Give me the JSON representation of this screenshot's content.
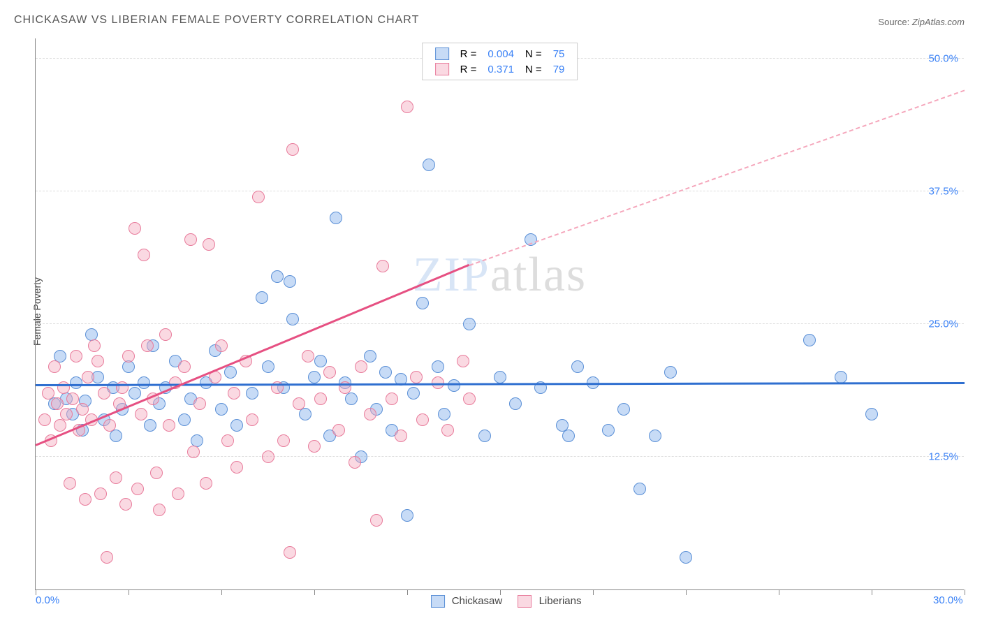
{
  "title": "CHICKASAW VS LIBERIAN FEMALE POVERTY CORRELATION CHART",
  "source_label": "Source:",
  "source_value": "ZipAtlas.com",
  "ylabel": "Female Poverty",
  "watermark_a": "ZIP",
  "watermark_b": "atlas",
  "chart": {
    "type": "scatter",
    "xlim": [
      0,
      30
    ],
    "ylim": [
      0,
      52
    ],
    "xticks": [
      0,
      3,
      6,
      9,
      12,
      15,
      18,
      21,
      24,
      27,
      30
    ],
    "xtick_labels": {
      "0": "0.0%",
      "30": "30.0%"
    },
    "yticks": [
      12.5,
      25.0,
      37.5,
      50.0
    ],
    "ytick_labels": [
      "12.5%",
      "25.0%",
      "37.5%",
      "50.0%"
    ],
    "background_color": "#ffffff",
    "grid_color": "#dddddd",
    "axis_color": "#888888",
    "tick_label_color": "#3b82f6",
    "marker_radius": 9,
    "series": [
      {
        "name": "Chickasaw",
        "fill": "rgba(130,175,235,0.45)",
        "stroke": "#5a8fd6",
        "R": "0.004",
        "N": "75",
        "trend": {
          "x1": 0,
          "y1": 19.2,
          "x2": 30,
          "y2": 19.4,
          "color": "#2f6fd0",
          "width": 2.5
        },
        "points": [
          [
            0.6,
            17.5
          ],
          [
            0.8,
            22.0
          ],
          [
            1.0,
            18.0
          ],
          [
            1.2,
            16.5
          ],
          [
            1.3,
            19.5
          ],
          [
            1.5,
            15.0
          ],
          [
            1.6,
            17.8
          ],
          [
            1.8,
            24.0
          ],
          [
            2.0,
            20.0
          ],
          [
            2.2,
            16.0
          ],
          [
            2.5,
            19.0
          ],
          [
            2.6,
            14.5
          ],
          [
            2.8,
            17.0
          ],
          [
            3.0,
            21.0
          ],
          [
            3.2,
            18.5
          ],
          [
            3.5,
            19.5
          ],
          [
            3.7,
            15.5
          ],
          [
            3.8,
            23.0
          ],
          [
            4.0,
            17.5
          ],
          [
            4.2,
            19.0
          ],
          [
            4.5,
            21.5
          ],
          [
            4.8,
            16.0
          ],
          [
            5.0,
            18.0
          ],
          [
            5.2,
            14.0
          ],
          [
            5.5,
            19.5
          ],
          [
            5.8,
            22.5
          ],
          [
            6.0,
            17.0
          ],
          [
            6.3,
            20.5
          ],
          [
            6.5,
            15.5
          ],
          [
            7.0,
            18.5
          ],
          [
            7.3,
            27.5
          ],
          [
            7.5,
            21.0
          ],
          [
            7.8,
            29.5
          ],
          [
            8.0,
            19.0
          ],
          [
            8.2,
            29.0
          ],
          [
            8.3,
            25.5
          ],
          [
            8.7,
            16.5
          ],
          [
            9.0,
            20.0
          ],
          [
            9.2,
            21.5
          ],
          [
            9.5,
            14.5
          ],
          [
            9.7,
            35.0
          ],
          [
            10.0,
            19.5
          ],
          [
            10.2,
            18.0
          ],
          [
            10.5,
            12.5
          ],
          [
            10.8,
            22.0
          ],
          [
            11.0,
            17.0
          ],
          [
            11.3,
            20.5
          ],
          [
            11.5,
            15.0
          ],
          [
            11.8,
            19.8
          ],
          [
            12.0,
            7.0
          ],
          [
            12.2,
            18.5
          ],
          [
            12.5,
            27.0
          ],
          [
            12.7,
            40.0
          ],
          [
            13.0,
            21.0
          ],
          [
            13.2,
            16.5
          ],
          [
            13.5,
            19.2
          ],
          [
            14.0,
            25.0
          ],
          [
            14.5,
            14.5
          ],
          [
            15.0,
            20.0
          ],
          [
            15.5,
            17.5
          ],
          [
            16.0,
            33.0
          ],
          [
            16.3,
            19.0
          ],
          [
            17.0,
            15.5
          ],
          [
            17.2,
            14.5
          ],
          [
            17.5,
            21.0
          ],
          [
            18.0,
            19.5
          ],
          [
            18.5,
            15.0
          ],
          [
            19.0,
            17.0
          ],
          [
            19.5,
            9.5
          ],
          [
            20.0,
            14.5
          ],
          [
            20.5,
            20.5
          ],
          [
            21.0,
            3.0
          ],
          [
            25.0,
            23.5
          ],
          [
            26.0,
            20.0
          ],
          [
            27.0,
            16.5
          ]
        ]
      },
      {
        "name": "Liberians",
        "fill": "rgba(245,170,190,0.45)",
        "stroke": "#e87b9b",
        "R": "0.371",
        "N": "79",
        "trend": {
          "x1": 0,
          "y1": 13.5,
          "x2": 14,
          "y2": 30.5,
          "color": "#e65082",
          "width": 2.5
        },
        "trend_dash": {
          "x1": 14,
          "y1": 30.5,
          "x2": 30,
          "y2": 47.0,
          "color": "#f5a6bb"
        },
        "points": [
          [
            0.3,
            16.0
          ],
          [
            0.4,
            18.5
          ],
          [
            0.5,
            14.0
          ],
          [
            0.6,
            21.0
          ],
          [
            0.7,
            17.5
          ],
          [
            0.8,
            15.5
          ],
          [
            0.9,
            19.0
          ],
          [
            1.0,
            16.5
          ],
          [
            1.1,
            10.0
          ],
          [
            1.2,
            18.0
          ],
          [
            1.3,
            22.0
          ],
          [
            1.4,
            15.0
          ],
          [
            1.5,
            17.0
          ],
          [
            1.6,
            8.5
          ],
          [
            1.7,
            20.0
          ],
          [
            1.8,
            16.0
          ],
          [
            1.9,
            23.0
          ],
          [
            2.0,
            21.5
          ],
          [
            2.1,
            9.0
          ],
          [
            2.2,
            18.5
          ],
          [
            2.3,
            3.0
          ],
          [
            2.4,
            15.5
          ],
          [
            2.6,
            10.5
          ],
          [
            2.7,
            17.5
          ],
          [
            2.8,
            19.0
          ],
          [
            2.9,
            8.0
          ],
          [
            3.0,
            22.0
          ],
          [
            3.2,
            34.0
          ],
          [
            3.3,
            9.5
          ],
          [
            3.4,
            16.5
          ],
          [
            3.5,
            31.5
          ],
          [
            3.6,
            23.0
          ],
          [
            3.8,
            18.0
          ],
          [
            3.9,
            11.0
          ],
          [
            4.0,
            7.5
          ],
          [
            4.2,
            24.0
          ],
          [
            4.3,
            15.5
          ],
          [
            4.5,
            19.5
          ],
          [
            4.6,
            9.0
          ],
          [
            4.8,
            21.0
          ],
          [
            5.0,
            33.0
          ],
          [
            5.1,
            13.0
          ],
          [
            5.3,
            17.5
          ],
          [
            5.5,
            10.0
          ],
          [
            5.6,
            32.5
          ],
          [
            5.8,
            20.0
          ],
          [
            6.0,
            23.0
          ],
          [
            6.2,
            14.0
          ],
          [
            6.4,
            18.5
          ],
          [
            6.5,
            11.5
          ],
          [
            6.8,
            21.5
          ],
          [
            7.0,
            16.0
          ],
          [
            7.2,
            37.0
          ],
          [
            7.5,
            12.5
          ],
          [
            7.8,
            19.0
          ],
          [
            8.0,
            14.0
          ],
          [
            8.2,
            3.5
          ],
          [
            8.3,
            41.5
          ],
          [
            8.5,
            17.5
          ],
          [
            8.8,
            22.0
          ],
          [
            9.0,
            13.5
          ],
          [
            9.2,
            18.0
          ],
          [
            9.5,
            20.5
          ],
          [
            9.8,
            15.0
          ],
          [
            10.0,
            19.0
          ],
          [
            10.3,
            12.0
          ],
          [
            10.5,
            21.0
          ],
          [
            10.8,
            16.5
          ],
          [
            11.0,
            6.5
          ],
          [
            11.2,
            30.5
          ],
          [
            11.5,
            18.0
          ],
          [
            11.8,
            14.5
          ],
          [
            12.0,
            45.5
          ],
          [
            12.3,
            20.0
          ],
          [
            12.5,
            16.0
          ],
          [
            13.0,
            19.5
          ],
          [
            13.3,
            15.0
          ],
          [
            13.8,
            21.5
          ],
          [
            14.0,
            18.0
          ]
        ]
      }
    ]
  },
  "legend_bottom": [
    "Chickasaw",
    "Liberians"
  ]
}
